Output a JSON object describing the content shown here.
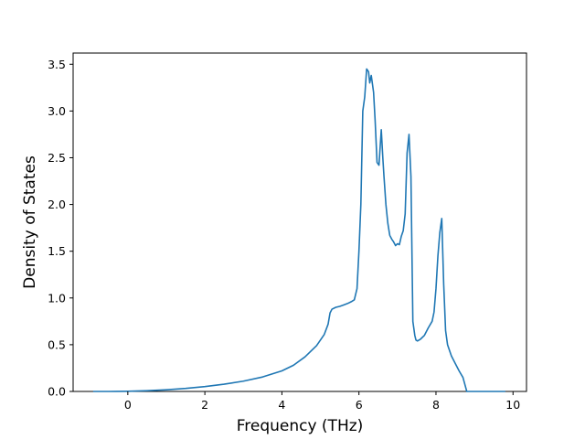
{
  "chart_data": {
    "type": "line",
    "title": "",
    "xlabel": "Frequency (THz)",
    "ylabel": "Density of States",
    "xlim": [
      -1.42,
      10.35
    ],
    "ylim": [
      0.0,
      3.62
    ],
    "xticks": [
      0,
      2,
      4,
      6,
      8,
      10
    ],
    "yticks": [
      0.0,
      0.5,
      1.0,
      1.5,
      2.0,
      2.5,
      3.0,
      3.5
    ],
    "xtick_labels": [
      "0",
      "2",
      "4",
      "6",
      "8",
      "10"
    ],
    "ytick_labels": [
      "0.0",
      "0.5",
      "1.0",
      "1.5",
      "2.0",
      "2.5",
      "3.0",
      "3.5"
    ],
    "grid": false,
    "line_color": "#1f77b4",
    "series": [
      {
        "x": [
          -0.9,
          -0.5,
          0.0,
          0.5,
          1.0,
          1.5,
          2.0,
          2.5,
          3.0,
          3.5,
          4.0,
          4.3,
          4.6,
          4.9,
          5.1,
          5.2,
          5.25,
          5.3,
          5.4,
          5.5,
          5.6,
          5.7,
          5.8,
          5.88,
          5.95,
          6.0,
          6.05,
          6.1,
          6.15,
          6.2,
          6.25,
          6.28,
          6.32,
          6.38,
          6.42,
          6.47,
          6.52,
          6.58,
          6.62,
          6.65,
          6.7,
          6.75,
          6.8,
          6.85,
          6.9,
          6.95,
          7.0,
          7.05,
          7.1,
          7.15,
          7.2,
          7.25,
          7.3,
          7.35,
          7.4,
          7.45,
          7.48,
          7.52,
          7.6,
          7.7,
          7.8,
          7.9,
          7.95,
          8.0,
          8.05,
          8.1,
          8.15,
          8.2,
          8.25,
          8.3,
          8.4,
          8.5,
          8.6,
          8.7,
          8.8,
          8.9,
          8.95,
          9.2,
          9.5,
          9.8
        ],
        "y": [
          0.0,
          0.0,
          0.002,
          0.008,
          0.018,
          0.032,
          0.052,
          0.078,
          0.11,
          0.155,
          0.22,
          0.28,
          0.37,
          0.49,
          0.61,
          0.72,
          0.84,
          0.88,
          0.9,
          0.91,
          0.925,
          0.94,
          0.96,
          0.98,
          1.1,
          1.5,
          2.0,
          3.0,
          3.15,
          3.45,
          3.42,
          3.3,
          3.38,
          3.2,
          2.9,
          2.45,
          2.42,
          2.8,
          2.5,
          2.3,
          2.0,
          1.8,
          1.67,
          1.63,
          1.6,
          1.56,
          1.58,
          1.57,
          1.66,
          1.72,
          1.9,
          2.55,
          2.75,
          2.3,
          0.75,
          0.6,
          0.55,
          0.54,
          0.56,
          0.6,
          0.68,
          0.75,
          0.85,
          1.1,
          1.45,
          1.7,
          1.85,
          1.15,
          0.65,
          0.5,
          0.38,
          0.3,
          0.22,
          0.15,
          0.0,
          0.0,
          0.0,
          0.0,
          0.0,
          0.0
        ]
      }
    ]
  }
}
